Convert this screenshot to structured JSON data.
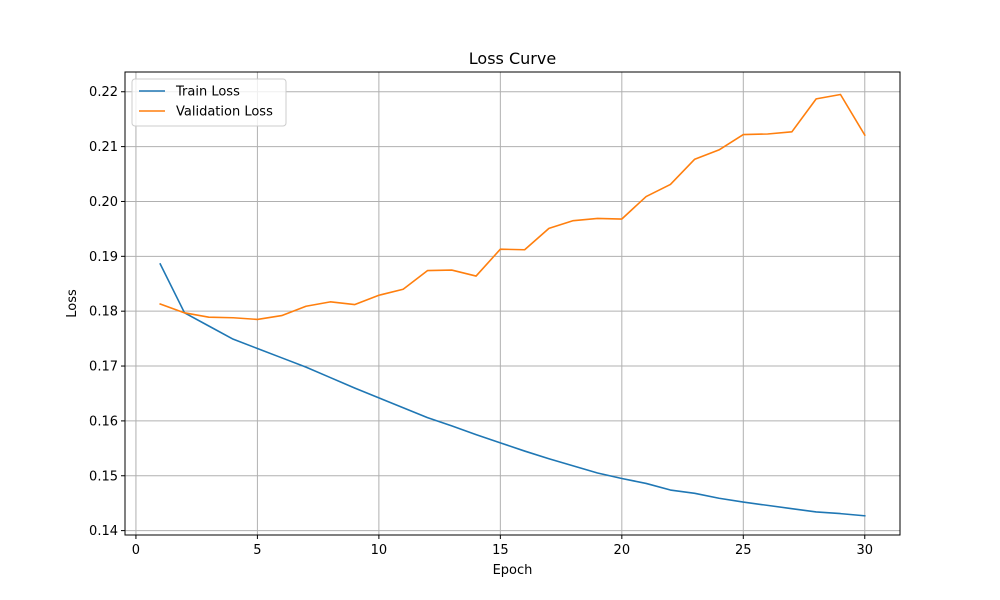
{
  "chart_data": {
    "type": "line",
    "title": "Loss Curve",
    "xlabel": "Epoch",
    "ylabel": "Loss",
    "xlim": [
      -0.45,
      31.45
    ],
    "ylim": [
      0.1392,
      0.2236
    ],
    "xticks": [
      0,
      5,
      10,
      15,
      20,
      25,
      30
    ],
    "yticks": [
      0.14,
      0.15,
      0.16,
      0.17,
      0.18,
      0.19,
      0.2,
      0.21,
      0.22
    ],
    "ytick_labels": [
      "0.14",
      "0.15",
      "0.16",
      "0.17",
      "0.18",
      "0.19",
      "0.20",
      "0.21",
      "0.22"
    ],
    "grid": true,
    "legend_position": "upper-left",
    "x": [
      1,
      2,
      3,
      4,
      5,
      6,
      7,
      8,
      9,
      10,
      11,
      12,
      13,
      14,
      15,
      16,
      17,
      18,
      19,
      20,
      21,
      22,
      23,
      24,
      25,
      26,
      27,
      28,
      29,
      30
    ],
    "series": [
      {
        "name": "Train Loss",
        "color": "#1f77b4",
        "values": [
          0.1886,
          0.1797,
          0.1773,
          0.1749,
          0.1732,
          0.1715,
          0.1698,
          0.1679,
          0.166,
          0.1642,
          0.1624,
          0.1606,
          0.1591,
          0.1575,
          0.156,
          0.1545,
          0.1531,
          0.1518,
          0.1505,
          0.1495,
          0.1486,
          0.1474,
          0.1468,
          0.1459,
          0.1452,
          0.1446,
          0.144,
          0.1434,
          0.1431,
          0.1427
        ]
      },
      {
        "name": "Validation Loss",
        "color": "#ff7f0e",
        "values": [
          0.1813,
          0.1797,
          0.1789,
          0.1788,
          0.1785,
          0.1792,
          0.1809,
          0.1817,
          0.1812,
          0.1829,
          0.184,
          0.1874,
          0.1875,
          0.1864,
          0.1913,
          0.1912,
          0.1951,
          0.1965,
          0.1969,
          0.1968,
          0.2009,
          0.2031,
          0.2077,
          0.2094,
          0.2122,
          0.2123,
          0.2127,
          0.2187,
          0.2195,
          0.2121
        ]
      }
    ]
  }
}
